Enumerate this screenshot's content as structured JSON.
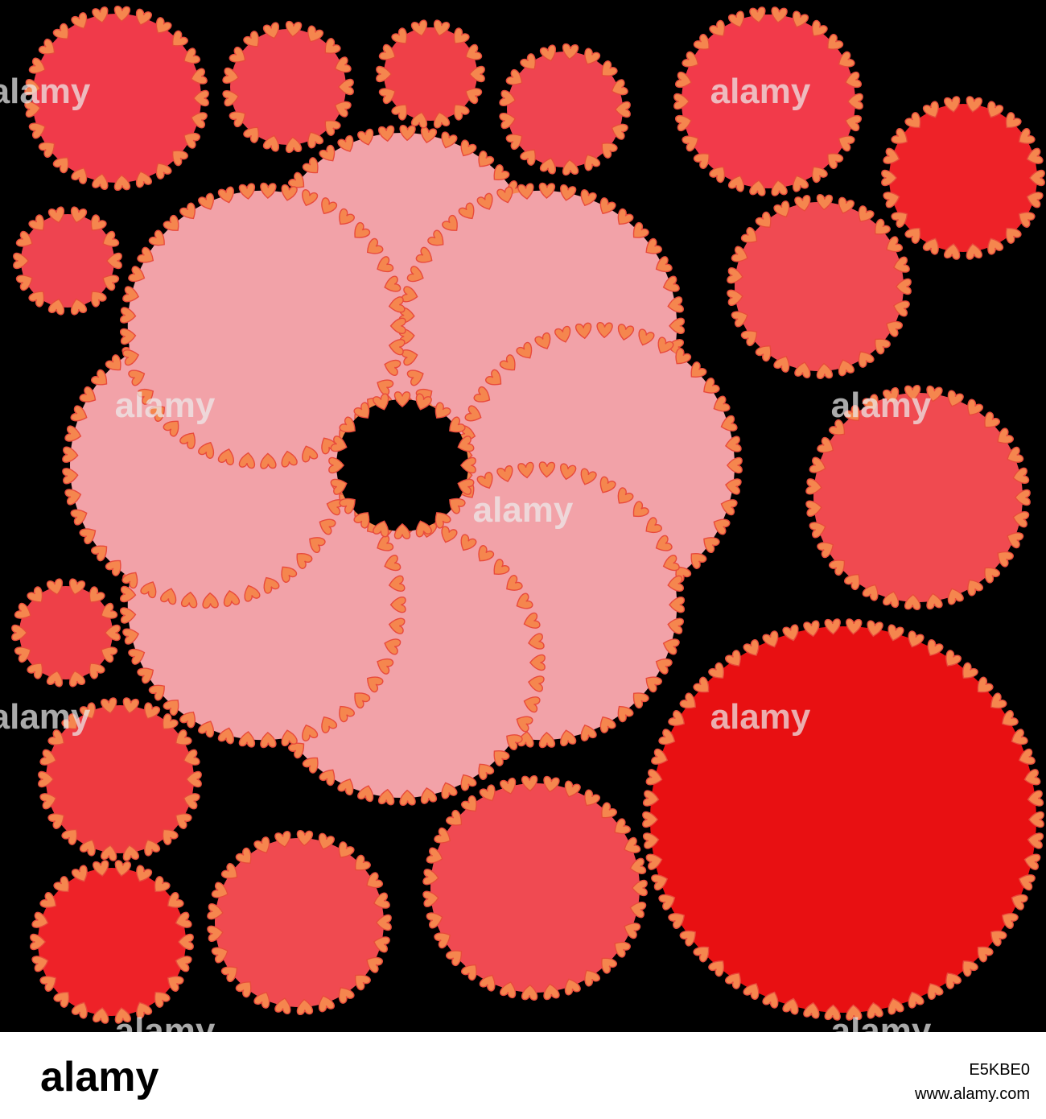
{
  "watermark": "alamy",
  "footer": {
    "logo": "alamy",
    "image_id": "E5KBE0",
    "url": "www.alamy.com"
  }
}
